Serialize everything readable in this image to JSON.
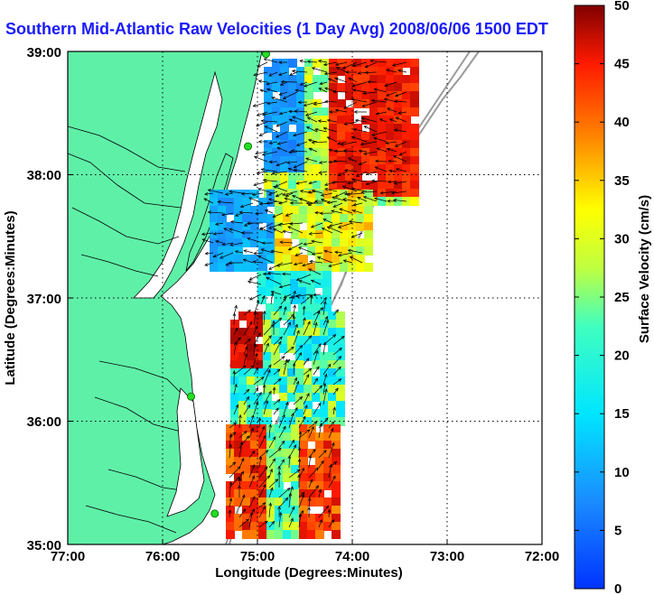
{
  "title": "Southern Mid-Atlantic Raw Velocities (1 Day Avg) 2008/06/06 1500 EDT",
  "map": {
    "xlabel": "Longitude (Degrees:Minutes)",
    "ylabel": "Latitude (Degrees:Minutes)",
    "x_ticks": [
      "77:00",
      "76:00",
      "75:00",
      "74:00",
      "73:00",
      "72:00"
    ],
    "y_ticks": [
      "39:00",
      "38:00",
      "37:00",
      "36:00",
      "35:00"
    ],
    "x_range": [
      -77,
      -72
    ],
    "y_range": [
      35,
      39
    ],
    "land_color": "#5ff0a8",
    "grid": true
  },
  "colorbar": {
    "label": "Surface Velocity (cm/s)",
    "ticks": [
      "0",
      "5",
      "10",
      "15",
      "20",
      "25",
      "30",
      "35",
      "40",
      "45",
      "50"
    ],
    "range": [
      0,
      50
    ]
  },
  "stations": [
    {
      "lon": -74.91,
      "lat": 38.98
    },
    {
      "lon": -75.1,
      "lat": 38.23
    },
    {
      "lon": -75.7,
      "lat": 36.2
    },
    {
      "lon": -75.45,
      "lat": 35.25
    }
  ]
}
